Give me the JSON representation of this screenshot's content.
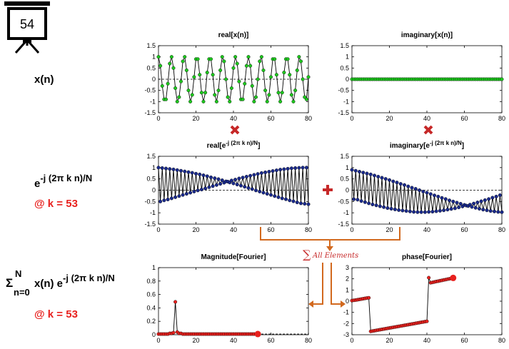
{
  "slide_number": "54",
  "row_labels": {
    "xn": "x(n)",
    "kernel_base": "e",
    "kernel_exp": "-j (2π k n)/N",
    "kernel_k": "@ k = 53",
    "dft_sigma": "Σ",
    "dft_sup": "N",
    "dft_sub": "n=0",
    "dft_mid": "x(n) e",
    "dft_exp": "-j (2π k n)/N",
    "dft_k": "@ k = 53"
  },
  "sum_label": "All Elements",
  "colors": {
    "green": "#1ec81e",
    "navy": "#1a2a8c",
    "red": "#e8211e",
    "orange": "#d2691e",
    "accent": "#c62828"
  },
  "chart_data": [
    {
      "id": "real_x",
      "type": "line",
      "title": "real[x(n)]",
      "x": [
        0,
        1,
        2,
        3,
        4,
        5,
        6,
        7,
        8,
        9,
        10,
        11,
        12,
        13,
        14,
        15,
        16,
        17,
        18,
        19,
        20,
        21,
        22,
        23,
        24,
        25,
        26,
        27,
        28,
        29,
        30,
        31,
        32,
        33,
        34,
        35,
        36,
        37,
        38,
        39,
        40,
        41,
        42,
        43,
        44,
        45,
        46,
        47,
        48,
        49,
        50,
        51,
        52,
        53,
        54,
        55,
        56,
        57,
        58,
        59,
        60,
        61,
        62,
        63,
        64,
        65,
        66,
        67,
        68,
        69,
        70,
        71,
        72,
        73,
        74,
        75,
        76,
        77,
        78,
        79,
        80
      ],
      "values": [
        1,
        0.6,
        -0.3,
        -0.9,
        -0.9,
        -0.2,
        0.7,
        1,
        0.5,
        -0.4,
        -1,
        -0.8,
        -0.1,
        0.8,
        1,
        0.4,
        -0.5,
        -1,
        -0.7,
        0.1,
        0.9,
        0.9,
        0.2,
        -0.6,
        -1,
        -0.6,
        0.3,
        0.9,
        0.9,
        0.2,
        -0.7,
        -1,
        -0.5,
        0.4,
        1,
        0.8,
        0,
        -0.8,
        -1,
        -0.4,
        0.5,
        1,
        0.7,
        -0.1,
        -0.9,
        -0.9,
        -0.2,
        0.6,
        1,
        0.6,
        -0.3,
        -1,
        -0.8,
        0,
        0.8,
        1,
        0.4,
        -0.5,
        -1,
        -0.7,
        0.1,
        0.9,
        0.9,
        0.2,
        -0.6,
        -1,
        -0.6,
        0.3,
        0.9,
        0.9,
        0.2,
        -0.7,
        -1,
        -0.5,
        0.4,
        1,
        0.8,
        0,
        -0.8,
        -0.9,
        0.1
      ],
      "xlim": [
        0,
        80
      ],
      "ylim": [
        -1.5,
        1.5
      ],
      "xticks": [
        0,
        20,
        40,
        60,
        80
      ],
      "xtick_labels": [
        "0",
        "20",
        "40",
        "60",
        "80"
      ],
      "yticks": [
        1.5,
        1,
        0.5,
        0,
        -0.5,
        -1,
        -1.5
      ],
      "ytick_labels": [
        "1.5",
        "1",
        "0.5",
        "0",
        "-0.5",
        "-1",
        "-1.5"
      ],
      "color": "#1ec81e",
      "dashed_zero": true,
      "grid": false
    },
    {
      "id": "imag_x",
      "type": "line",
      "title": "imaginary[x(n)]",
      "x": [
        0,
        1,
        2,
        3,
        4,
        5,
        6,
        7,
        8,
        9,
        10,
        11,
        12,
        13,
        14,
        15,
        16,
        17,
        18,
        19,
        20,
        21,
        22,
        23,
        24,
        25,
        26,
        27,
        28,
        29,
        30,
        31,
        32,
        33,
        34,
        35,
        36,
        37,
        38,
        39,
        40,
        41,
        42,
        43,
        44,
        45,
        46,
        47,
        48,
        49,
        50,
        51,
        52,
        53,
        54,
        55,
        56,
        57,
        58,
        59,
        60,
        61,
        62,
        63,
        64,
        65,
        66,
        67,
        68,
        69,
        70,
        71,
        72,
        73,
        74,
        75,
        76,
        77,
        78,
        79,
        80
      ],
      "values": [
        0,
        0,
        0,
        0,
        0,
        0,
        0,
        0,
        0,
        0,
        0,
        0,
        0,
        0,
        0,
        0,
        0,
        0,
        0,
        0,
        0,
        0,
        0,
        0,
        0,
        0,
        0,
        0,
        0,
        0,
        0,
        0,
        0,
        0,
        0,
        0,
        0,
        0,
        0,
        0,
        0,
        0,
        0,
        0,
        0,
        0,
        0,
        0,
        0,
        0,
        0,
        0,
        0,
        0,
        0,
        0,
        0,
        0,
        0,
        0,
        0,
        0,
        0,
        0,
        0,
        0,
        0,
        0,
        0,
        0,
        0,
        0,
        0,
        0,
        0,
        0,
        0,
        0,
        0,
        0,
        0
      ],
      "xlim": [
        0,
        80
      ],
      "ylim": [
        -1.5,
        1.5
      ],
      "xticks": [
        0,
        20,
        40,
        60,
        80
      ],
      "xtick_labels": [
        "0",
        "20",
        "40",
        "60",
        "80"
      ],
      "yticks": [
        1.5,
        1,
        0.5,
        0,
        -0.5,
        -1,
        -1.5
      ],
      "ytick_labels": [
        "1.5",
        "1",
        "0.5",
        "0",
        "-0.5",
        "-1",
        "-1.5"
      ],
      "color": "#1ec81e",
      "dashed_zero": false,
      "grid": false
    },
    {
      "id": "real_kernel",
      "type": "line",
      "title": "real[e",
      "title_sup": "-j (2π k n)/N",
      "title_end": "]",
      "x": [
        0,
        1,
        2,
        3,
        4,
        5,
        6,
        7,
        8,
        9,
        10,
        11,
        12,
        13,
        14,
        15,
        16,
        17,
        18,
        19,
        20,
        21,
        22,
        23,
        24,
        25,
        26,
        27,
        28,
        29,
        30,
        31,
        32,
        33,
        34,
        35,
        36,
        37,
        38,
        39,
        40,
        41,
        42,
        43,
        44,
        45,
        46,
        47,
        48,
        49,
        50,
        51,
        52,
        53,
        54,
        55,
        56,
        57,
        58,
        59,
        60,
        61,
        62,
        63,
        64,
        65,
        66,
        67,
        68,
        69,
        70,
        71,
        72,
        73,
        74,
        75,
        76,
        77,
        78,
        79,
        80
      ],
      "values": [
        1,
        -0.5,
        0.98,
        -0.45,
        0.96,
        -0.41,
        0.94,
        -0.36,
        0.92,
        -0.31,
        0.89,
        -0.26,
        0.86,
        -0.21,
        0.83,
        -0.16,
        0.8,
        -0.11,
        0.77,
        -0.06,
        0.73,
        -0.01,
        0.7,
        0.03,
        0.66,
        0.08,
        0.62,
        0.13,
        0.57,
        0.18,
        0.53,
        0.23,
        0.49,
        0.28,
        0.44,
        0.33,
        0.39,
        0.38,
        0.34,
        0.43,
        0.3,
        0.47,
        0.25,
        0.52,
        0.2,
        0.56,
        0.15,
        0.6,
        0.1,
        0.64,
        0.05,
        0.68,
        -0.01,
        0.72,
        -0.06,
        0.76,
        -0.11,
        0.79,
        -0.16,
        0.82,
        -0.21,
        0.85,
        -0.26,
        0.88,
        -0.31,
        0.91,
        -0.36,
        0.93,
        -0.4,
        0.95,
        -0.45,
        0.97,
        -0.49,
        0.98,
        -0.54,
        0.99,
        -0.58,
        1,
        -0.6,
        1,
        -0.62
      ],
      "xlim": [
        0,
        80
      ],
      "ylim": [
        -1.5,
        1.5
      ],
      "xticks": [
        0,
        20,
        40,
        60,
        80
      ],
      "xtick_labels": [
        "0",
        "20",
        "40",
        "60",
        "80"
      ],
      "yticks": [
        1.5,
        1,
        0.5,
        0,
        -0.5,
        -1,
        -1.5
      ],
      "ytick_labels": [
        "1.5",
        "1",
        "0.5",
        "0",
        "-0.5",
        "-1",
        "-1.5"
      ],
      "color": "#1a2a8c",
      "dashed_zero": true,
      "grid": false
    },
    {
      "id": "imag_kernel",
      "type": "line",
      "title": "imaginary[e",
      "title_sup": "-j (2π k n)/N",
      "title_end": "]",
      "x": [
        0,
        1,
        2,
        3,
        4,
        5,
        6,
        7,
        8,
        9,
        10,
        11,
        12,
        13,
        14,
        15,
        16,
        17,
        18,
        19,
        20,
        21,
        22,
        23,
        24,
        25,
        26,
        27,
        28,
        29,
        30,
        31,
        32,
        33,
        34,
        35,
        36,
        37,
        38,
        39,
        40,
        41,
        42,
        43,
        44,
        45,
        46,
        47,
        48,
        49,
        50,
        51,
        52,
        53,
        54,
        55,
        56,
        57,
        58,
        59,
        60,
        61,
        62,
        63,
        64,
        65,
        66,
        67,
        68,
        69,
        70,
        71,
        72,
        73,
        74,
        75,
        76,
        77,
        78,
        79,
        80
      ],
      "values": [
        0.9,
        -0.4,
        0.86,
        -0.42,
        0.82,
        -0.48,
        0.78,
        -0.53,
        0.74,
        -0.58,
        0.7,
        -0.63,
        0.65,
        -0.67,
        0.6,
        -0.71,
        0.55,
        -0.75,
        0.5,
        -0.79,
        0.45,
        -0.82,
        0.39,
        -0.85,
        0.34,
        -0.88,
        0.28,
        -0.9,
        0.23,
        -0.92,
        0.17,
        -0.94,
        0.11,
        -0.96,
        0.06,
        -0.97,
        0,
        -0.97,
        -0.06,
        -0.97,
        -0.11,
        -0.96,
        -0.17,
        -0.95,
        -0.23,
        -0.93,
        -0.28,
        -0.91,
        -0.34,
        -0.89,
        -0.39,
        -0.86,
        -0.45,
        -0.83,
        -0.5,
        -0.8,
        -0.55,
        -0.76,
        -0.6,
        -0.72,
        -0.65,
        -0.68,
        -0.7,
        -0.64,
        -0.74,
        -0.59,
        -0.78,
        -0.54,
        -0.82,
        -0.49,
        -0.86,
        -0.44,
        -0.89,
        -0.39,
        -0.92,
        -0.33,
        -0.94,
        -0.28,
        -0.96,
        -0.22,
        -0.97
      ],
      "xlim": [
        0,
        80
      ],
      "ylim": [
        -1.5,
        1.5
      ],
      "xticks": [
        0,
        20,
        40,
        60,
        80
      ],
      "xtick_labels": [
        "0",
        "20",
        "40",
        "60",
        "80"
      ],
      "yticks": [
        1.5,
        1,
        0.5,
        0,
        -0.5,
        -1,
        -1.5
      ],
      "ytick_labels": [
        "1.5",
        "1",
        "0.5",
        "0",
        "-0.5",
        "-1",
        "-1.5"
      ],
      "color": "#1a2a8c",
      "dashed_zero": true,
      "grid": false
    },
    {
      "id": "magnitude",
      "type": "line",
      "title": "Magnitude[Fourier]",
      "x": [
        0,
        1,
        2,
        3,
        4,
        5,
        6,
        7,
        8,
        9,
        10,
        11,
        12,
        13,
        14,
        15,
        16,
        17,
        18,
        19,
        20,
        21,
        22,
        23,
        24,
        25,
        26,
        27,
        28,
        29,
        30,
        31,
        32,
        33,
        34,
        35,
        36,
        37,
        38,
        39,
        40,
        41,
        42,
        43,
        44,
        45,
        46,
        47,
        48,
        49,
        50,
        51,
        52,
        53
      ],
      "values": [
        0.01,
        0.01,
        0.01,
        0.01,
        0.01,
        0.01,
        0.02,
        0.02,
        0.03,
        0.49,
        0.04,
        0.02,
        0.02,
        0.01,
        0.01,
        0.01,
        0.01,
        0.01,
        0.01,
        0.01,
        0.01,
        0.01,
        0.01,
        0.01,
        0.01,
        0.01,
        0.01,
        0.01,
        0.01,
        0.01,
        0.01,
        0.01,
        0.01,
        0.01,
        0.01,
        0.01,
        0.01,
        0.01,
        0.01,
        0.01,
        0.01,
        0.01,
        0.01,
        0.01,
        0.01,
        0.01,
        0.01,
        0.01,
        0.01,
        0.01,
        0.01,
        0.01,
        0.01,
        0.01
      ],
      "marker_end": 53,
      "xlim": [
        0,
        80
      ],
      "ylim": [
        0,
        1
      ],
      "xticks": [
        0,
        20,
        40,
        60,
        80
      ],
      "xtick_labels": [
        "0",
        "20",
        "40",
        "60",
        "80"
      ],
      "yticks": [
        1,
        0.8,
        0.6,
        0.4,
        0.2,
        0
      ],
      "ytick_labels": [
        "1",
        "0.8",
        "0.6",
        "0.4",
        "0.2",
        "0"
      ],
      "color": "#e8211e",
      "dashed_zero": false,
      "grid": false
    },
    {
      "id": "phase",
      "type": "line",
      "title": "phase[Fourier]",
      "x": [
        0,
        1,
        2,
        3,
        4,
        5,
        6,
        7,
        8,
        9,
        10,
        11,
        12,
        13,
        14,
        15,
        16,
        17,
        18,
        19,
        20,
        21,
        22,
        23,
        24,
        25,
        26,
        27,
        28,
        29,
        30,
        31,
        32,
        33,
        34,
        35,
        36,
        37,
        38,
        39,
        40,
        41,
        42,
        43,
        44,
        45,
        46,
        47,
        48,
        49,
        50,
        51,
        52,
        53,
        54
      ],
      "values": [
        0.05,
        0.08,
        0.1,
        0.13,
        0.16,
        0.19,
        0.22,
        0.25,
        0.28,
        0.3,
        -2.7,
        -2.67,
        -2.64,
        -2.61,
        -2.58,
        -2.55,
        -2.52,
        -2.49,
        -2.46,
        -2.43,
        -2.4,
        -2.37,
        -2.34,
        -2.31,
        -2.28,
        -2.25,
        -2.22,
        -2.19,
        -2.16,
        -2.13,
        -2.1,
        -2.07,
        -2.04,
        -2.01,
        -1.98,
        -1.95,
        -1.92,
        -1.89,
        -1.86,
        -1.83,
        -1.8,
        2.1,
        1.65,
        1.68,
        1.72,
        1.76,
        1.79,
        1.83,
        1.86,
        1.9,
        1.93,
        1.97,
        2.0,
        2.04,
        2.08
      ],
      "marker_end": 54,
      "xlim": [
        0,
        80
      ],
      "ylim": [
        -3,
        3
      ],
      "xticks": [
        0,
        20,
        40,
        60,
        80
      ],
      "xtick_labels": [
        "0",
        "20",
        "40",
        "60",
        "80"
      ],
      "yticks": [
        3,
        2,
        1,
        0,
        -1,
        -2,
        -3
      ],
      "ytick_labels": [
        "3",
        "2",
        "1",
        "0",
        "-1",
        "-2",
        "-3"
      ],
      "color": "#e8211e",
      "dashed_zero": false,
      "grid": false
    }
  ]
}
